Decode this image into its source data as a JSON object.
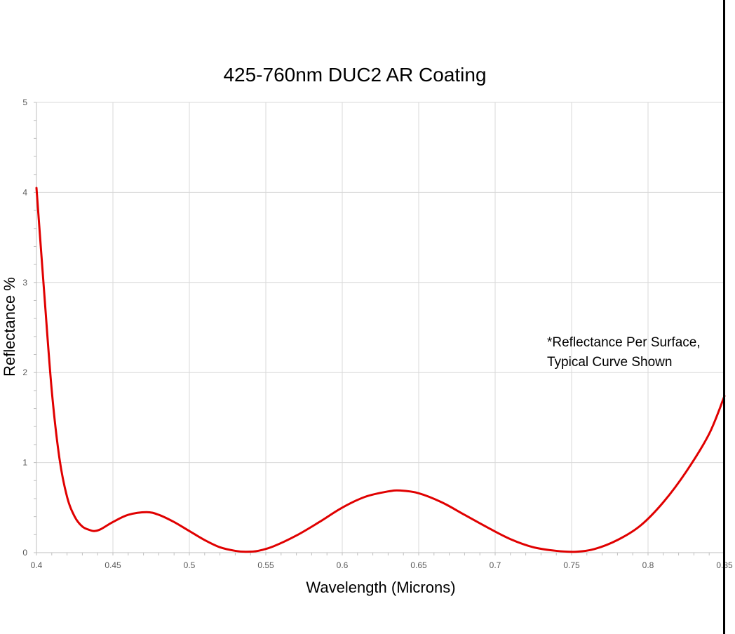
{
  "chart_data": {
    "type": "line",
    "title": "425-760nm DUC2 AR Coating",
    "xlabel": "Wavelength (Microns)",
    "ylabel": "Reflectance %",
    "xlim": [
      0.4,
      0.85
    ],
    "ylim": [
      0,
      5
    ],
    "x_ticks": [
      "0.4",
      "0.45",
      "0.5",
      "0.55",
      "0.6",
      "0.65",
      "0.7",
      "0.75",
      "0.8",
      "0.85"
    ],
    "y_ticks": [
      "0",
      "1",
      "2",
      "3",
      "4",
      "5"
    ],
    "grid": true,
    "annotation": [
      "*Reflectance Per Surface,",
      "Typical Curve Shown"
    ],
    "series": [
      {
        "color": "#e00000",
        "x": [
          0.4,
          0.405,
          0.41,
          0.415,
          0.42,
          0.425,
          0.43,
          0.435,
          0.438,
          0.442,
          0.45,
          0.46,
          0.472,
          0.48,
          0.49,
          0.5,
          0.51,
          0.52,
          0.53,
          0.537,
          0.545,
          0.555,
          0.57,
          0.585,
          0.6,
          0.615,
          0.63,
          0.638,
          0.65,
          0.665,
          0.68,
          0.695,
          0.71,
          0.725,
          0.74,
          0.753,
          0.765,
          0.78,
          0.795,
          0.81,
          0.825,
          0.84,
          0.85
        ],
        "y": [
          4.05,
          2.9,
          1.8,
          1.05,
          0.62,
          0.4,
          0.29,
          0.25,
          0.24,
          0.26,
          0.34,
          0.42,
          0.45,
          0.42,
          0.34,
          0.24,
          0.14,
          0.06,
          0.02,
          0.01,
          0.02,
          0.07,
          0.19,
          0.34,
          0.5,
          0.62,
          0.68,
          0.69,
          0.66,
          0.56,
          0.42,
          0.28,
          0.15,
          0.06,
          0.02,
          0.01,
          0.04,
          0.14,
          0.3,
          0.56,
          0.9,
          1.32,
          1.74
        ]
      }
    ]
  }
}
